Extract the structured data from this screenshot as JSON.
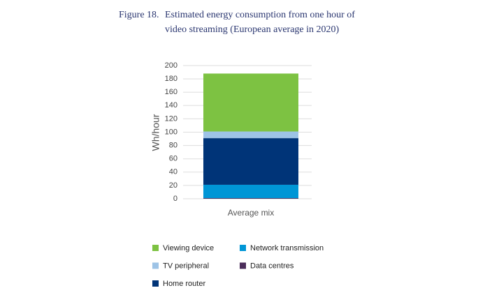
{
  "chart_data": {
    "type": "stacked-bar",
    "figure_label": "Figure 18.",
    "title_lines": [
      "Estimated energy consumption from one hour of",
      "video streaming (European average in 2020)"
    ],
    "ylabel": "Wh/hour",
    "categories": [
      "Average mix"
    ],
    "series": [
      {
        "name": "Data centres",
        "color": "#4b2d5a",
        "values": [
          1
        ]
      },
      {
        "name": "Network transmission",
        "color": "#0096d6",
        "values": [
          20
        ]
      },
      {
        "name": "Home router",
        "color": "#003478",
        "values": [
          70
        ]
      },
      {
        "name": "TV peripheral",
        "color": "#9dc3e6",
        "values": [
          10
        ]
      },
      {
        "name": "Viewing device",
        "color": "#7dc242",
        "values": [
          87
        ]
      }
    ],
    "ylim": [
      0,
      200
    ],
    "yticks": [
      0,
      20,
      40,
      60,
      80,
      100,
      120,
      140,
      160,
      180,
      200
    ],
    "grid": true
  }
}
